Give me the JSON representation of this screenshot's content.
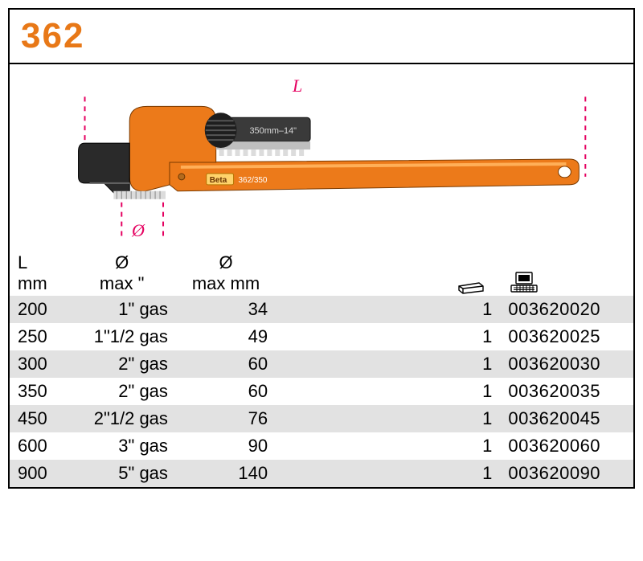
{
  "brand_color": "#e87817",
  "dim_color": "#e50060",
  "shade_color": "#e2e2e2",
  "title": "362",
  "diagram": {
    "label_L": "L",
    "label_diameter": "Ø",
    "tool_label_brand": "Beta",
    "tool_label_model": "362/350"
  },
  "table": {
    "headers": {
      "L_line1": "L",
      "L_line2": "mm",
      "dia_in_line1": "Ø",
      "dia_in_line2": "max \"",
      "dia_mm_line1": "Ø",
      "dia_mm_line2": "max mm"
    },
    "rows": [
      {
        "L": "200",
        "dia_in": "1\" gas",
        "dia_mm": "34",
        "pack": "1",
        "code": "003620020",
        "shade": true
      },
      {
        "L": "250",
        "dia_in": "1\"1/2 gas",
        "dia_mm": "49",
        "pack": "1",
        "code": "003620025",
        "shade": false
      },
      {
        "L": "300",
        "dia_in": "2\" gas",
        "dia_mm": "60",
        "pack": "1",
        "code": "003620030",
        "shade": true
      },
      {
        "L": "350",
        "dia_in": "2\" gas",
        "dia_mm": "60",
        "pack": "1",
        "code": "003620035",
        "shade": false
      },
      {
        "L": "450",
        "dia_in": "2\"1/2 gas",
        "dia_mm": "76",
        "pack": "1",
        "code": "003620045",
        "shade": true
      },
      {
        "L": "600",
        "dia_in": "3\" gas",
        "dia_mm": "90",
        "pack": "1",
        "code": "003620060",
        "shade": false
      },
      {
        "L": "900",
        "dia_in": "5\" gas",
        "dia_mm": "140",
        "pack": "1",
        "code": "003620090",
        "shade": true
      }
    ]
  }
}
